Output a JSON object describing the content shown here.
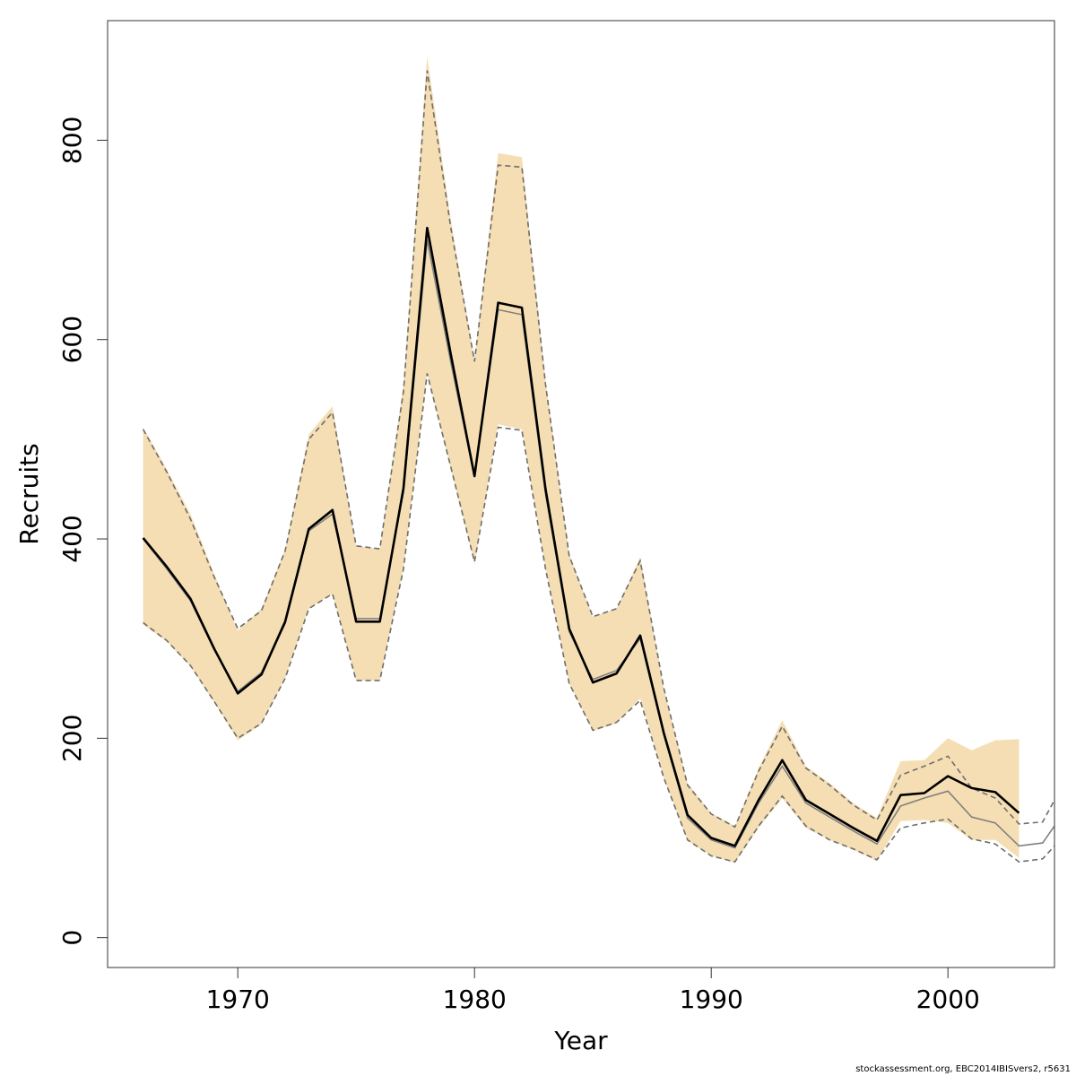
{
  "chart_data": {
    "type": "line",
    "title": "",
    "xlabel": "Year",
    "ylabel": "Recruits",
    "xlim": [
      1964.5,
      2004.5
    ],
    "ylim": [
      -30,
      920
    ],
    "xticks": [
      1970,
      1980,
      1990,
      2000
    ],
    "yticks": [
      0,
      200,
      400,
      600,
      800
    ],
    "grid": false,
    "legend": "none",
    "colors": {
      "band": "#f5deb3",
      "main_line": "#000000",
      "secondary_line": "#808080",
      "interval_lines": "#6e6e6e"
    },
    "series": [
      {
        "role": "band",
        "x": [
          1966,
          1967,
          1968,
          1969,
          1970,
          1971,
          1972,
          1973,
          1974,
          1975,
          1976,
          1977,
          1978,
          1979,
          1980,
          1981,
          1982,
          1983,
          1984,
          1985,
          1986,
          1987,
          1988,
          1989,
          1990,
          1991,
          1992,
          1993,
          1994,
          1995,
          1996,
          1997,
          1998,
          1999,
          2000,
          2001,
          2002,
          2003
        ],
        "lower": [
          314,
          297,
          272,
          236,
          198,
          214,
          260,
          330,
          345,
          258,
          258,
          370,
          566,
          470,
          375,
          515,
          510,
          370,
          255,
          207,
          215,
          240,
          160,
          97,
          82,
          75,
          110,
          140,
          110,
          98,
          88,
          77,
          117,
          118,
          115,
          98,
          98,
          80
        ],
        "upper": [
          512,
          470,
          425,
          365,
          308,
          330,
          390,
          505,
          533,
          393,
          390,
          555,
          884,
          720,
          580,
          787,
          783,
          560,
          385,
          322,
          330,
          382,
          250,
          155,
          125,
          112,
          170,
          218,
          172,
          155,
          135,
          120,
          177,
          178,
          200,
          188,
          198,
          199
        ]
      },
      {
        "role": "main",
        "x": [
          1966,
          1967,
          1968,
          1969,
          1970,
          1971,
          1972,
          1973,
          1974,
          1975,
          1976,
          1977,
          1978,
          1979,
          1980,
          1981,
          1982,
          1983,
          1984,
          1985,
          1986,
          1987,
          1988,
          1989,
          1990,
          1991,
          1992,
          1993,
          1994,
          1995,
          1996,
          1997,
          1998,
          1999,
          2000,
          2001,
          2002,
          2003
        ],
        "y": [
          401,
          372,
          340,
          290,
          245,
          264,
          317,
          410,
          429,
          317,
          317,
          451,
          712,
          585,
          463,
          637,
          632,
          450,
          310,
          256,
          265,
          303,
          205,
          123,
          100,
          92,
          138,
          178,
          138,
          124,
          110,
          97,
          143,
          145,
          162,
          150,
          146,
          125
        ]
      },
      {
        "role": "secondary",
        "x": [
          1966,
          1967,
          1968,
          1969,
          1970,
          1971,
          1972,
          1973,
          1974,
          1975,
          1976,
          1977,
          1978,
          1979,
          1980,
          1981,
          1982,
          1983,
          1984,
          1985,
          1986,
          1987,
          1988,
          1989,
          1990,
          1991,
          1992,
          1993,
          1994,
          1995,
          1996,
          1997,
          1998,
          1999,
          2000,
          2001,
          2002,
          2003,
          2004,
          2004.5
        ],
        "y": [
          400,
          370,
          338,
          289,
          247,
          266,
          315,
          408,
          425,
          320,
          320,
          447,
          700,
          577,
          462,
          630,
          625,
          445,
          307,
          259,
          268,
          300,
          203,
          120,
          98,
          90,
          135,
          172,
          135,
          121,
          107,
          94,
          132,
          140,
          147,
          121,
          115,
          92,
          95,
          112
        ]
      },
      {
        "role": "interval-upper",
        "x": [
          1966,
          1967,
          1968,
          1969,
          1970,
          1971,
          1972,
          1973,
          1974,
          1975,
          1976,
          1977,
          1978,
          1979,
          1980,
          1981,
          1982,
          1983,
          1984,
          1985,
          1986,
          1987,
          1988,
          1989,
          1990,
          1991,
          1992,
          1993,
          1994,
          1995,
          1996,
          1997,
          1998,
          1999,
          2000,
          2001,
          2002,
          2003,
          2004,
          2004.5
        ],
        "y": [
          510,
          467,
          420,
          362,
          310,
          328,
          388,
          500,
          527,
          393,
          390,
          548,
          870,
          712,
          578,
          775,
          773,
          555,
          383,
          322,
          330,
          378,
          250,
          153,
          124,
          111,
          167,
          212,
          170,
          153,
          133,
          118,
          163,
          172,
          182,
          150,
          140,
          114,
          116,
          138
        ]
      },
      {
        "role": "interval-lower",
        "x": [
          1966,
          1967,
          1968,
          1969,
          1970,
          1971,
          1972,
          1973,
          1974,
          1975,
          1976,
          1977,
          1978,
          1979,
          1980,
          1981,
          1982,
          1983,
          1984,
          1985,
          1986,
          1987,
          1988,
          1989,
          1990,
          1991,
          1992,
          1993,
          1994,
          1995,
          1996,
          1997,
          1998,
          1999,
          2000,
          2001,
          2002,
          2003,
          2004,
          2004.5
        ],
        "y": [
          316,
          298,
          273,
          237,
          200,
          215,
          260,
          330,
          345,
          258,
          258,
          370,
          566,
          472,
          377,
          512,
          509,
          370,
          255,
          208,
          216,
          238,
          160,
          98,
          82,
          76,
          112,
          142,
          112,
          98,
          89,
          78,
          110,
          115,
          119,
          99,
          94,
          76,
          79,
          92
        ]
      }
    ]
  },
  "footer": {
    "credit": "stockassessment.org, EBC2014IBISvers2, r5631"
  }
}
